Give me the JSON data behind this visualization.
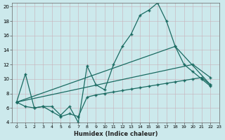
{
  "xlabel": "Humidex (Indice chaleur)",
  "bg_color": "#cce9ec",
  "line_color": "#1a6b62",
  "grid_color": "#b0cfd4",
  "xlim": [
    -0.5,
    23
  ],
  "ylim": [
    4,
    20.5
  ],
  "xticks": [
    0,
    1,
    2,
    3,
    4,
    5,
    6,
    7,
    8,
    9,
    10,
    11,
    12,
    13,
    14,
    15,
    16,
    17,
    18,
    19,
    20,
    21,
    22,
    23
  ],
  "yticks": [
    4,
    6,
    8,
    10,
    12,
    14,
    16,
    18,
    20
  ],
  "line1_x": [
    0,
    1,
    2,
    3,
    4,
    5,
    6,
    7,
    8,
    9,
    10,
    11,
    12,
    13,
    14,
    15,
    16,
    17,
    18,
    19,
    20,
    21,
    22
  ],
  "line1_y": [
    6.8,
    10.7,
    6.0,
    6.2,
    6.2,
    5.0,
    6.2,
    4.0,
    11.8,
    9.2,
    8.5,
    12.0,
    14.5,
    16.2,
    18.8,
    19.5,
    20.5,
    18.0,
    14.5,
    12.0,
    11.0,
    10.0,
    9.0
  ],
  "line2_x": [
    0,
    1,
    2,
    3,
    4,
    5,
    6,
    7,
    8,
    9,
    10,
    11,
    12,
    13,
    14,
    15,
    16,
    17,
    18,
    19,
    20,
    21,
    22
  ],
  "line2_y": [
    6.8,
    6.2,
    6.0,
    6.2,
    5.5,
    4.8,
    5.2,
    4.8,
    7.5,
    7.8,
    8.0,
    8.2,
    8.4,
    8.6,
    8.8,
    9.0,
    9.2,
    9.4,
    9.6,
    9.8,
    10.0,
    10.2,
    9.2
  ],
  "line3_x": [
    0,
    20,
    22
  ],
  "line3_y": [
    6.8,
    12.0,
    10.2
  ],
  "line4_x": [
    0,
    18,
    22
  ],
  "line4_y": [
    6.8,
    14.5,
    9.2
  ]
}
